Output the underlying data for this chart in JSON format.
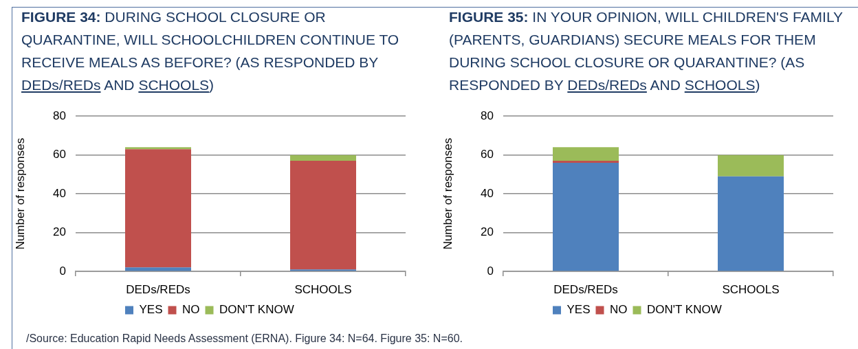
{
  "chart_data": [
    {
      "type": "bar",
      "title": "FIGURE 34: DURING SCHOOL CLOSURE OR QUARANTINE, WILL SCHOOLCHILDREN CONTINUE TO RECEIVE MEALS AS BEFORE? (AS RESPONDED BY DEDs/REDs AND SCHOOLS)",
      "ylabel": "Number of responses",
      "categories": [
        "DEDs/REDs",
        "SCHOOLS"
      ],
      "series": [
        {
          "name": "YES",
          "color": "#4f81bd",
          "values": [
            2,
            1
          ]
        },
        {
          "name": "NO",
          "color": "#c0504d",
          "values": [
            61,
            56
          ]
        },
        {
          "name": "DON'T KNOW",
          "color": "#9bbb59",
          "values": [
            1,
            3
          ]
        }
      ],
      "stacked": true,
      "ylim": [
        0,
        80
      ],
      "yticks": [
        0,
        20,
        40,
        60,
        80
      ],
      "grid": "y",
      "legend": "bottom",
      "annotations": [
        "/Source: Education Rapid Needs Assessment (ERNA). Figure 34: N=64. Figure 35: N=60."
      ]
    },
    {
      "type": "bar",
      "title": "FIGURE 35: IN YOUR OPINION, WILL CHILDREN'S FAMILY (PARENTS, GUARDIANS) SECURE MEALS FOR THEM DURING SCHOOL CLOSURE OR QUARANTINE? (AS RESPONDED BY DEDs/REDs AND SCHOOLS)",
      "ylabel": "Number of responses",
      "categories": [
        "DEDs/REDs",
        "SCHOOLS"
      ],
      "series": [
        {
          "name": "YES",
          "color": "#4f81bd",
          "values": [
            56,
            49
          ]
        },
        {
          "name": "NO",
          "color": "#c0504d",
          "values": [
            1,
            0
          ]
        },
        {
          "name": "DON'T KNOW",
          "color": "#9bbb59",
          "values": [
            7,
            11
          ]
        }
      ],
      "stacked": true,
      "ylim": [
        0,
        80
      ],
      "yticks": [
        0,
        20,
        40,
        60,
        80
      ],
      "grid": "y",
      "legend": "bottom"
    }
  ]
}
